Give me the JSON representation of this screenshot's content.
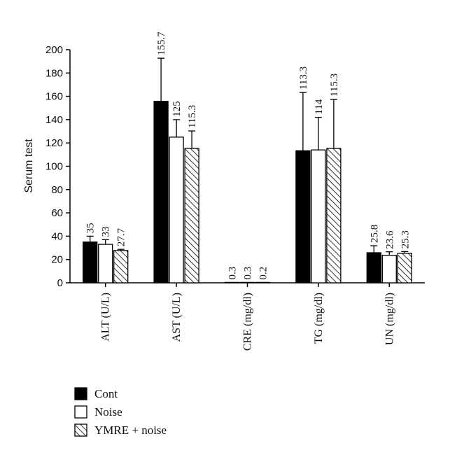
{
  "chart_data": {
    "type": "bar",
    "ylabel": "Serum test",
    "ylim": [
      0,
      200
    ],
    "yticks": [
      0,
      20,
      40,
      60,
      80,
      100,
      120,
      140,
      160,
      180,
      200
    ],
    "categories": [
      "ALT (U/L)",
      "AST (U/L)",
      "CRE (mg/dl)",
      "TG (mg/dl)",
      "UN (mg/dl)"
    ],
    "series": [
      {
        "name": "Cont",
        "fill": "solid",
        "color": "#000000",
        "values": [
          35,
          155.7,
          0.3,
          113.3,
          25.8
        ],
        "labels": [
          "35",
          "155.7",
          "0.3",
          "113.3",
          "25.8"
        ],
        "error": [
          5,
          37,
          0,
          50,
          6
        ]
      },
      {
        "name": "Noise",
        "fill": "open",
        "color": "#ffffff",
        "values": [
          33,
          125,
          0.3,
          114,
          23.6
        ],
        "labels": [
          "33",
          "125",
          "0.3",
          "114",
          "23.6"
        ],
        "error": [
          4,
          15,
          0,
          28,
          3
        ]
      },
      {
        "name": "YMRE + noise",
        "fill": "hatched",
        "color": "#000000",
        "values": [
          27.7,
          115.3,
          0.2,
          115.3,
          25.3
        ],
        "labels": [
          "27.7",
          "115.3",
          "0.2",
          "115.3",
          "25.3"
        ],
        "error": [
          1,
          15,
          0,
          42,
          1.5
        ]
      }
    ],
    "legend_position": "bottom-left",
    "grid": false
  }
}
